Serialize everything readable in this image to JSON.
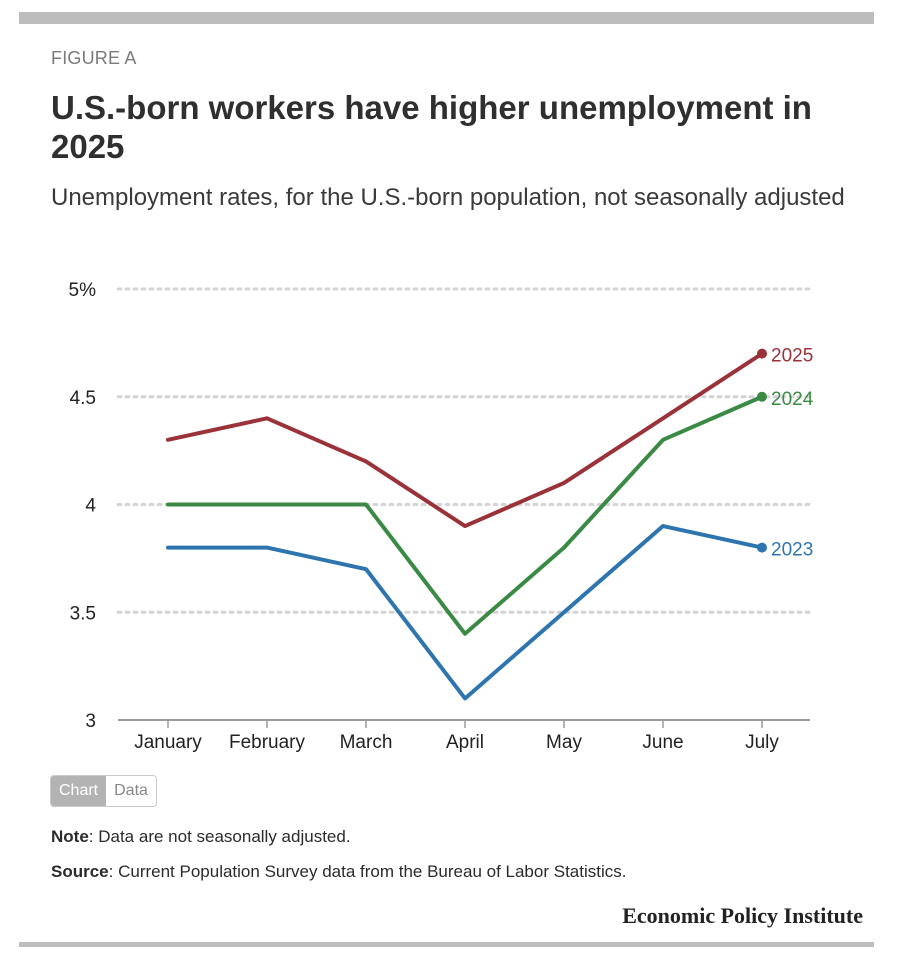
{
  "figure_label": "FIGURE A",
  "title": "U.S.-born workers have higher unemployment in 2025",
  "subtitle": "Unemployment rates, for the U.S.-born population, not seasonally adjusted",
  "toggle": {
    "chart_label": "Chart",
    "data_label": "Data"
  },
  "note": {
    "label": "Note",
    "text": ": Data are not seasonally adjusted."
  },
  "source": {
    "label": "Source",
    "text": ": Current Population Survey data from the Bureau of Labor Statistics."
  },
  "brand": "Economic Policy Institute",
  "colors": {
    "2023": "#2e75b0",
    "2024": "#3a8a45",
    "2025": "#9b3139",
    "grid": "#d4d4d4",
    "axis": "#9a9a9a"
  },
  "chart_data": {
    "type": "line",
    "categories": [
      "January",
      "February",
      "March",
      "April",
      "May",
      "June",
      "July"
    ],
    "ylim": [
      3,
      5
    ],
    "yticks": [
      3,
      3.5,
      4,
      4.5,
      5
    ],
    "ytick_labels": [
      "3",
      "3.5",
      "4",
      "4.5",
      "5%"
    ],
    "grid": true,
    "legend": "end-of-line labels",
    "series": [
      {
        "name": "2025",
        "values": [
          4.3,
          4.4,
          4.2,
          3.9,
          4.1,
          4.4,
          4.7
        ]
      },
      {
        "name": "2024",
        "values": [
          4.0,
          4.0,
          4.0,
          3.4,
          3.8,
          4.3,
          4.5
        ]
      },
      {
        "name": "2023",
        "values": [
          3.8,
          3.8,
          3.7,
          3.1,
          3.5,
          3.9,
          3.8
        ]
      }
    ]
  }
}
